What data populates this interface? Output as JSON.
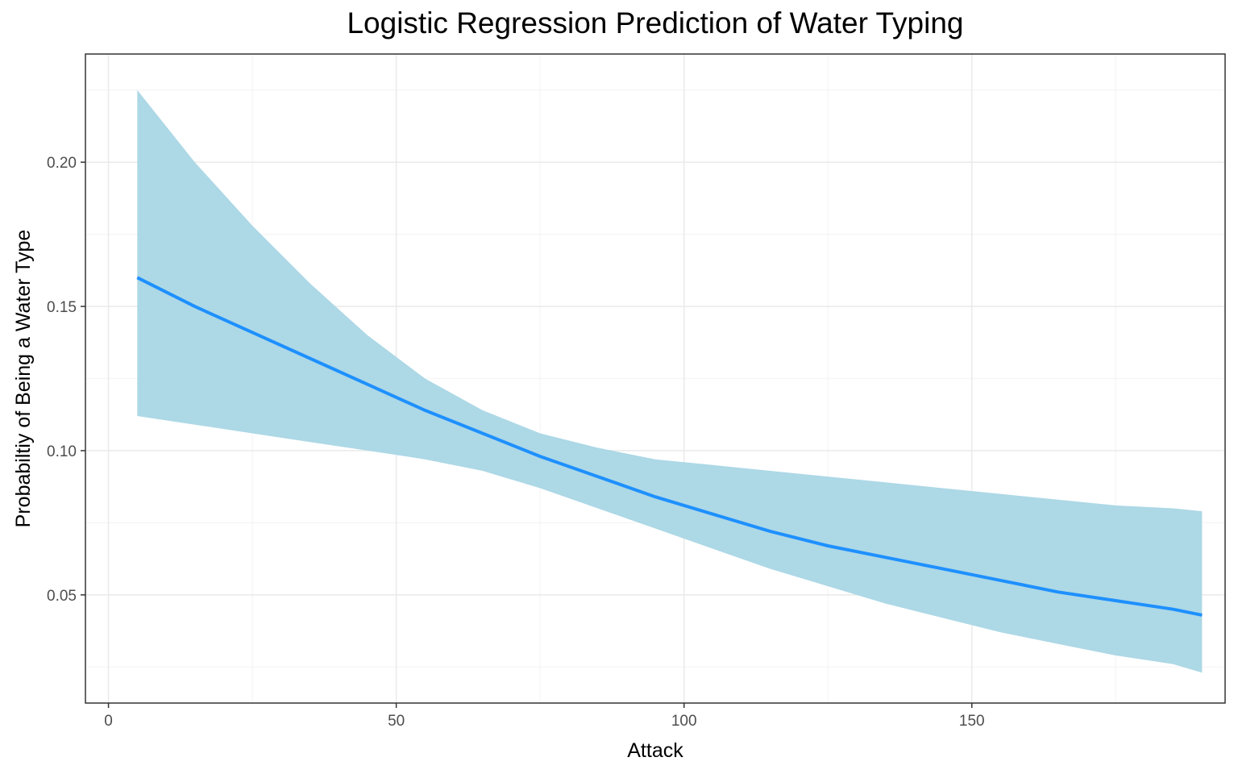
{
  "chart_data": {
    "type": "line",
    "title": "Logistic Regression Prediction of Water Typing",
    "xlabel": "Attack",
    "ylabel": "Probabiltiy of Being a Water Type",
    "xlim": [
      -4,
      194
    ],
    "ylim": [
      0.0125,
      0.2375
    ],
    "x_ticks": [
      0,
      50,
      100,
      150
    ],
    "x_tick_labels": [
      "0",
      "50",
      "100",
      "150"
    ],
    "y_ticks": [
      0.05,
      0.1,
      0.15,
      0.2
    ],
    "y_tick_labels": [
      "0.05",
      "0.10",
      "0.15",
      "0.20"
    ],
    "x_minor_ticks": [
      25,
      75,
      125,
      175
    ],
    "y_minor_ticks": [
      0.025,
      0.075,
      0.125,
      0.175,
      0.225
    ],
    "grid": true,
    "legend": "none",
    "series": [
      {
        "x": [
          5,
          15,
          25,
          35,
          45,
          55,
          65,
          75,
          85,
          95,
          105,
          115,
          125,
          135,
          145,
          155,
          165,
          175,
          185,
          190
        ],
        "values": [
          0.16,
          0.15,
          0.141,
          0.132,
          0.123,
          0.114,
          0.106,
          0.098,
          0.091,
          0.084,
          0.078,
          0.072,
          0.067,
          0.063,
          0.059,
          0.055,
          0.051,
          0.048,
          0.045,
          0.043
        ],
        "lower": [
          0.112,
          0.109,
          0.106,
          0.103,
          0.1,
          0.097,
          0.093,
          0.087,
          0.08,
          0.073,
          0.066,
          0.059,
          0.053,
          0.047,
          0.042,
          0.037,
          0.033,
          0.029,
          0.026,
          0.023
        ],
        "upper": [
          0.225,
          0.2,
          0.178,
          0.158,
          0.14,
          0.125,
          0.114,
          0.106,
          0.101,
          0.097,
          0.095,
          0.093,
          0.091,
          0.089,
          0.087,
          0.085,
          0.083,
          0.081,
          0.08,
          0.079
        ]
      }
    ],
    "colors": {
      "line": "#1e90ff",
      "band": "#add8e6",
      "grid_major": "#ebebeb",
      "grid_minor": "#f5f5f5",
      "panel_border": "#333333",
      "tick_text": "#4d4d4d"
    }
  }
}
